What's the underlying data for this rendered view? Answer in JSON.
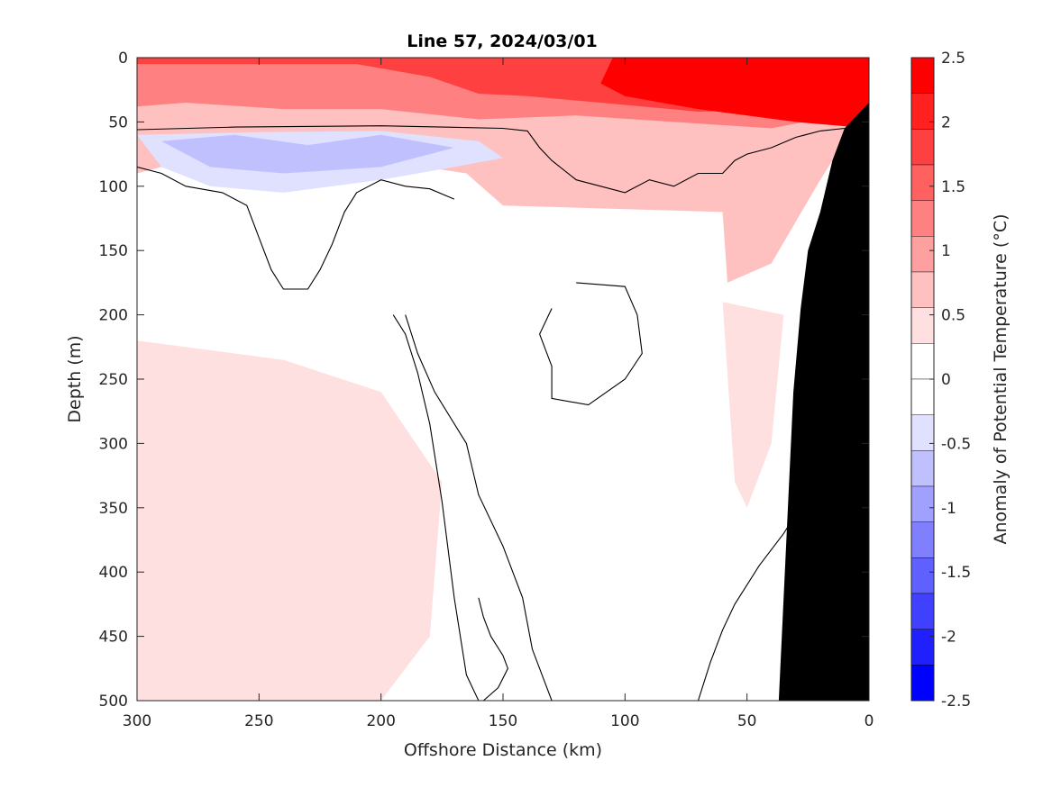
{
  "chart_data": {
    "type": "contour",
    "title": "Line 57, 2024/03/01",
    "xlabel": "Offshore Distance (km)",
    "ylabel": "Depth (m)",
    "xlim": [
      300,
      0
    ],
    "ylim": [
      0,
      500
    ],
    "x_reversed": true,
    "y_reversed": true,
    "xticks": [
      300,
      250,
      200,
      150,
      100,
      50,
      0
    ],
    "xtick_labels": [
      "300",
      "250",
      "200",
      "150",
      "100",
      "50",
      "0"
    ],
    "yticks": [
      0,
      50,
      100,
      150,
      200,
      250,
      300,
      350,
      400,
      450,
      500
    ],
    "ytick_labels": [
      "0",
      "50",
      "100",
      "150",
      "200",
      "250",
      "300",
      "350",
      "400",
      "450",
      "500"
    ],
    "grid": false,
    "colorbar": {
      "label": "Anomaly of Potential Temperature (°C)",
      "range": [
        -2.5,
        2.5
      ],
      "step": 0.25,
      "tick_values": [
        2.5,
        2,
        1.5,
        1,
        0.5,
        0,
        -0.5,
        -1,
        -1.5,
        -2,
        -2.5
      ],
      "tick_labels": [
        "2.5",
        "2",
        "1.5",
        "1",
        "0.5",
        "0",
        "-0.5",
        "-1",
        "-1.5",
        "-2",
        "-2.5"
      ],
      "colors": [
        "#ff0000",
        "#ff2020",
        "#ff4040",
        "#ff6060",
        "#ff8080",
        "#ffa0a0",
        "#ffc0c0",
        "#ffe0e0",
        "#ffffff",
        "#ffffff",
        "#e0e0ff",
        "#c0c0ff",
        "#a0a0ff",
        "#8080ff",
        "#6060ff",
        "#4040ff",
        "#2020ff",
        "#0000ff"
      ]
    },
    "land_color": "#000000",
    "regions": [
      {
        "level": 0.75,
        "points": [
          [
            300,
            0
          ],
          [
            0,
            0
          ],
          [
            0,
            35
          ],
          [
            20,
            95
          ],
          [
            40,
            160
          ],
          [
            58,
            175
          ],
          [
            60,
            120
          ],
          [
            150,
            115
          ],
          [
            165,
            90
          ],
          [
            200,
            80
          ],
          [
            250,
            82
          ],
          [
            290,
            85
          ],
          [
            300,
            90
          ]
        ]
      },
      {
        "level": 1.25,
        "points": [
          [
            300,
            0
          ],
          [
            0,
            0
          ],
          [
            0,
            40
          ],
          [
            40,
            55
          ],
          [
            80,
            50
          ],
          [
            120,
            45
          ],
          [
            160,
            48
          ],
          [
            200,
            40
          ],
          [
            240,
            40
          ],
          [
            280,
            35
          ],
          [
            300,
            38
          ]
        ]
      },
      {
        "level": 1.75,
        "points": [
          [
            300,
            0
          ],
          [
            0,
            0
          ],
          [
            0,
            45
          ],
          [
            30,
            40
          ],
          [
            70,
            42
          ],
          [
            110,
            35
          ],
          [
            140,
            30
          ],
          [
            160,
            28
          ],
          [
            180,
            15
          ],
          [
            210,
            5
          ],
          [
            300,
            5
          ]
        ]
      },
      {
        "level": 2.25,
        "points": [
          [
            200,
            0
          ],
          [
            0,
            0
          ],
          [
            0,
            55
          ],
          [
            30,
            50
          ],
          [
            70,
            40
          ],
          [
            100,
            30
          ],
          [
            110,
            20
          ],
          [
            105,
            0
          ]
        ]
      },
      {
        "level": 2.5,
        "points": [
          [
            50,
            0
          ],
          [
            0,
            0
          ],
          [
            0,
            40
          ],
          [
            20,
            40
          ],
          [
            32,
            30
          ],
          [
            32,
            10
          ]
        ]
      },
      {
        "level": -0.5,
        "points": [
          [
            300,
            60
          ],
          [
            250,
            58
          ],
          [
            200,
            57
          ],
          [
            160,
            65
          ],
          [
            150,
            78
          ],
          [
            170,
            85
          ],
          [
            200,
            95
          ],
          [
            240,
            105
          ],
          [
            270,
            100
          ],
          [
            290,
            85
          ]
        ]
      },
      {
        "level": -0.75,
        "points": [
          [
            290,
            65
          ],
          [
            260,
            60
          ],
          [
            230,
            68
          ],
          [
            200,
            60
          ],
          [
            170,
            70
          ],
          [
            200,
            85
          ],
          [
            240,
            90
          ],
          [
            270,
            85
          ]
        ]
      },
      {
        "level": 0.5,
        "points": [
          [
            300,
            220
          ],
          [
            240,
            235
          ],
          [
            200,
            260
          ],
          [
            175,
            330
          ],
          [
            180,
            450
          ],
          [
            200,
            500
          ],
          [
            300,
            500
          ]
        ]
      },
      {
        "level": 0.5,
        "points": [
          [
            295,
            250
          ],
          [
            250,
            255
          ],
          [
            230,
            270
          ],
          [
            225,
            380
          ],
          [
            240,
            450
          ],
          [
            260,
            460
          ],
          [
            290,
            455
          ],
          [
            300,
            450
          ],
          [
            300,
            260
          ]
        ]
      },
      {
        "level": 0.5,
        "points": [
          [
            60,
            190
          ],
          [
            55,
            330
          ],
          [
            50,
            350
          ],
          [
            40,
            300
          ],
          [
            35,
            200
          ]
        ]
      },
      {
        "level": -0.25,
        "points": [
          [
            50,
            500
          ],
          [
            45,
            470
          ],
          [
            38,
            460
          ],
          [
            32,
            475
          ],
          [
            32,
            500
          ]
        ]
      }
    ],
    "contours": [
      {
        "level": 0,
        "points": [
          [
            300,
            56
          ],
          [
            260,
            54
          ],
          [
            200,
            53
          ],
          [
            150,
            55
          ],
          [
            140,
            57
          ],
          [
            135,
            70
          ],
          [
            130,
            80
          ],
          [
            120,
            95
          ],
          [
            110,
            100
          ],
          [
            100,
            105
          ],
          [
            90,
            95
          ],
          [
            80,
            100
          ],
          [
            70,
            90
          ],
          [
            60,
            90
          ],
          [
            55,
            80
          ],
          [
            50,
            75
          ],
          [
            40,
            70
          ],
          [
            30,
            62
          ],
          [
            20,
            57
          ],
          [
            10,
            55
          ]
        ]
      },
      {
        "level": 0,
        "points": [
          [
            300,
            85
          ],
          [
            290,
            90
          ],
          [
            280,
            100
          ],
          [
            265,
            105
          ],
          [
            255,
            115
          ],
          [
            250,
            140
          ],
          [
            245,
            165
          ],
          [
            240,
            180
          ],
          [
            230,
            180
          ],
          [
            225,
            165
          ],
          [
            220,
            145
          ],
          [
            215,
            120
          ],
          [
            210,
            105
          ],
          [
            205,
            100
          ],
          [
            200,
            95
          ],
          [
            190,
            100
          ],
          [
            180,
            102
          ],
          [
            170,
            110
          ]
        ]
      },
      {
        "level": 0,
        "points": [
          [
            195,
            200
          ],
          [
            190,
            215
          ],
          [
            185,
            245
          ],
          [
            180,
            285
          ],
          [
            175,
            345
          ],
          [
            170,
            420
          ],
          [
            165,
            480
          ],
          [
            160,
            500
          ]
        ]
      },
      {
        "level": 0,
        "points": [
          [
            190,
            200
          ],
          [
            185,
            230
          ],
          [
            178,
            260
          ],
          [
            165,
            300
          ],
          [
            160,
            340
          ],
          [
            150,
            380
          ],
          [
            142,
            420
          ],
          [
            138,
            460
          ],
          [
            130,
            500
          ]
        ]
      },
      {
        "level": 0,
        "points": [
          [
            120,
            175
          ],
          [
            100,
            178
          ],
          [
            95,
            200
          ],
          [
            93,
            230
          ],
          [
            100,
            250
          ],
          [
            115,
            270
          ],
          [
            130,
            265
          ],
          [
            130,
            240
          ],
          [
            135,
            215
          ],
          [
            130,
            195
          ]
        ]
      },
      {
        "level": 0,
        "points": [
          [
            70,
            500
          ],
          [
            65,
            470
          ],
          [
            60,
            445
          ],
          [
            55,
            425
          ],
          [
            45,
            395
          ],
          [
            35,
            370
          ],
          [
            30,
            355
          ],
          [
            25,
            330
          ]
        ]
      },
      {
        "level": 0,
        "points": [
          [
            160,
            420
          ],
          [
            158,
            435
          ],
          [
            155,
            450
          ],
          [
            150,
            465
          ],
          [
            148,
            475
          ],
          [
            152,
            490
          ],
          [
            158,
            500
          ]
        ]
      }
    ],
    "land_points": [
      [
        0,
        35
      ],
      [
        10,
        55
      ],
      [
        15,
        80
      ],
      [
        20,
        120
      ],
      [
        25,
        150
      ],
      [
        28,
        195
      ],
      [
        31,
        260
      ],
      [
        33,
        340
      ],
      [
        35,
        420
      ],
      [
        37,
        500
      ],
      [
        0,
        500
      ]
    ]
  }
}
